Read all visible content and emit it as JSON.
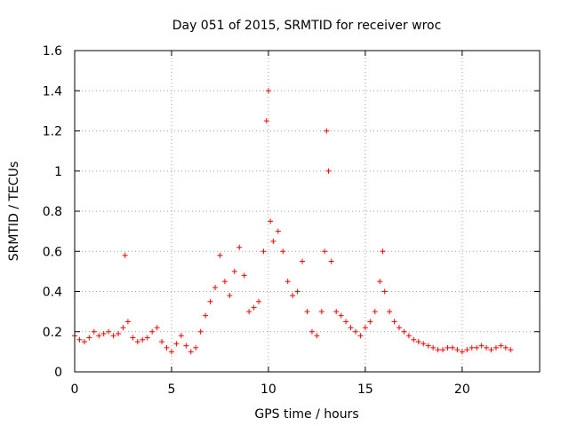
{
  "chart_data": {
    "type": "scatter",
    "title": "Day 051 of 2015, SRMTID for receiver wroc",
    "xlabel": "GPS time / hours",
    "ylabel": "SRMTID / TECUs",
    "xlim": [
      0,
      24
    ],
    "ylim": [
      0,
      1.6
    ],
    "xticks": [
      "0",
      "5",
      "10",
      "15",
      "20"
    ],
    "yticks": [
      "0",
      "0.2",
      "0.4",
      "0.6",
      "0.8",
      "1",
      "1.2",
      "1.4",
      "1.6"
    ],
    "grid": true,
    "marker": "plus",
    "color": "#ff0000",
    "series": [
      {
        "name": "SRMTID",
        "x": [
          0.0,
          0.25,
          0.5,
          0.75,
          1.0,
          1.25,
          1.5,
          1.75,
          2.0,
          2.25,
          2.5,
          2.6,
          2.75,
          3.0,
          3.25,
          3.5,
          3.75,
          4.0,
          4.25,
          4.5,
          4.75,
          5.0,
          5.25,
          5.5,
          5.75,
          6.0,
          6.25,
          6.5,
          6.75,
          7.0,
          7.25,
          7.5,
          7.75,
          8.0,
          8.25,
          8.5,
          8.75,
          9.0,
          9.25,
          9.5,
          9.75,
          9.9,
          10.0,
          10.1,
          10.25,
          10.5,
          10.75,
          11.0,
          11.25,
          11.5,
          11.75,
          12.0,
          12.25,
          12.5,
          12.75,
          12.9,
          13.0,
          13.1,
          13.25,
          13.5,
          13.75,
          14.0,
          14.25,
          14.5,
          14.75,
          15.0,
          15.25,
          15.5,
          15.75,
          15.9,
          16.0,
          16.25,
          16.5,
          16.75,
          17.0,
          17.25,
          17.5,
          17.75,
          18.0,
          18.25,
          18.5,
          18.75,
          19.0,
          19.25,
          19.5,
          19.75,
          20.0,
          20.25,
          20.5,
          20.75,
          21.0,
          21.25,
          21.5,
          21.75,
          22.0,
          22.25,
          22.5
        ],
        "y": [
          0.18,
          0.16,
          0.15,
          0.17,
          0.2,
          0.18,
          0.19,
          0.2,
          0.18,
          0.19,
          0.22,
          0.58,
          0.25,
          0.17,
          0.15,
          0.16,
          0.17,
          0.2,
          0.22,
          0.15,
          0.12,
          0.1,
          0.14,
          0.18,
          0.13,
          0.1,
          0.12,
          0.2,
          0.28,
          0.35,
          0.42,
          0.58,
          0.45,
          0.38,
          0.5,
          0.62,
          0.48,
          0.3,
          0.32,
          0.35,
          0.6,
          1.25,
          1.4,
          0.75,
          0.65,
          0.7,
          0.6,
          0.45,
          0.38,
          0.4,
          0.55,
          0.3,
          0.2,
          0.18,
          0.3,
          0.6,
          1.2,
          1.0,
          0.55,
          0.3,
          0.28,
          0.25,
          0.22,
          0.2,
          0.18,
          0.22,
          0.25,
          0.3,
          0.45,
          0.6,
          0.4,
          0.3,
          0.25,
          0.22,
          0.2,
          0.18,
          0.16,
          0.15,
          0.14,
          0.13,
          0.12,
          0.11,
          0.11,
          0.12,
          0.12,
          0.11,
          0.1,
          0.11,
          0.12,
          0.12,
          0.13,
          0.12,
          0.11,
          0.12,
          0.13,
          0.12,
          0.11
        ]
      }
    ]
  }
}
